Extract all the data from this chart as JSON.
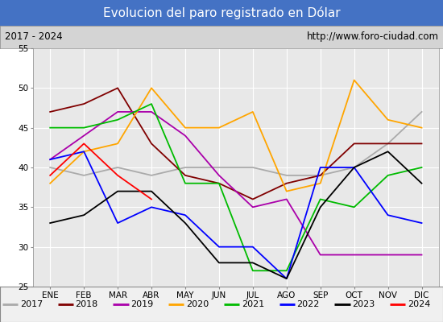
{
  "title": "Evolucion del paro registrado en Dólar",
  "subtitle_left": "2017 - 2024",
  "subtitle_right": "http://www.foro-ciudad.com",
  "months": [
    "ENE",
    "FEB",
    "MAR",
    "ABR",
    "MAY",
    "JUN",
    "JUL",
    "AGO",
    "SEP",
    "OCT",
    "NOV",
    "DIC"
  ],
  "ylim": [
    25,
    55
  ],
  "yticks": [
    25,
    30,
    35,
    40,
    45,
    50,
    55
  ],
  "series": {
    "2017": {
      "color": "#aaaaaa",
      "data": [
        40,
        39,
        40,
        39,
        40,
        40,
        40,
        39,
        39,
        40,
        43,
        47
      ]
    },
    "2018": {
      "color": "#800000",
      "data": [
        47,
        48,
        50,
        43,
        39,
        38,
        36,
        38,
        39,
        43,
        43,
        43
      ]
    },
    "2019": {
      "color": "#aa00aa",
      "data": [
        41,
        44,
        47,
        47,
        44,
        39,
        35,
        36,
        29,
        29,
        29,
        29
      ]
    },
    "2020": {
      "color": "#ffa500",
      "data": [
        38,
        42,
        43,
        50,
        45,
        45,
        47,
        37,
        38,
        51,
        46,
        45
      ]
    },
    "2021": {
      "color": "#00bb00",
      "data": [
        45,
        45,
        46,
        48,
        38,
        38,
        27,
        27,
        36,
        35,
        39,
        40
      ]
    },
    "2022": {
      "color": "#0000ff",
      "data": [
        41,
        42,
        33,
        35,
        34,
        30,
        30,
        26,
        40,
        40,
        34,
        33
      ]
    },
    "2023": {
      "color": "#000000",
      "data": [
        33,
        34,
        37,
        37,
        33,
        28,
        28,
        26,
        35,
        40,
        42,
        38
      ]
    },
    "2024": {
      "color": "#ff0000",
      "data": [
        39,
        43,
        39,
        36,
        null,
        null,
        null,
        null,
        null,
        null,
        null,
        null
      ]
    }
  },
  "title_bg_color": "#4472c4",
  "title_font_color": "#ffffff",
  "subtitle_bg_color": "#d4d4d4",
  "plot_bg_color": "#e8e8e8",
  "grid_color": "#ffffff",
  "legend_bg_color": "#f0f0f0",
  "title_fontsize": 11,
  "axis_label_fontsize": 7.5,
  "legend_fontsize": 8,
  "subtitle_fontsize": 8.5
}
